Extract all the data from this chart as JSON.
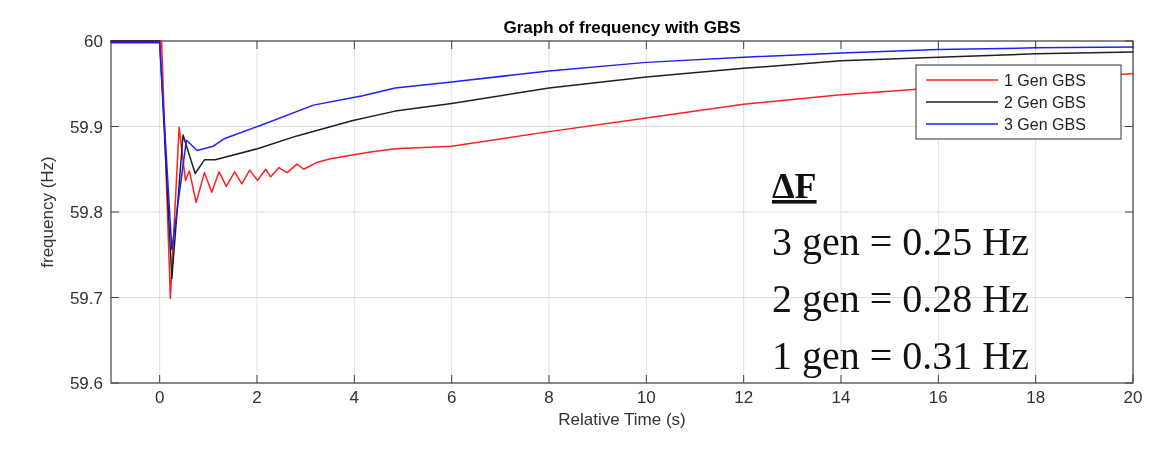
{
  "chart_data": {
    "type": "line",
    "title": "Graph of frequency with GBS",
    "xlabel": "Relative Time (s)",
    "ylabel": "frequency (Hz)",
    "xlim": [
      -1,
      20
    ],
    "xticks": [
      0,
      2,
      4,
      6,
      8,
      10,
      12,
      14,
      16,
      18,
      20
    ],
    "ylim": [
      59.6,
      60
    ],
    "yticks": [
      59.6,
      59.7,
      59.8,
      59.9,
      60
    ],
    "grid": true,
    "legend": "top right",
    "line_style": "solid",
    "marker": "none",
    "annotations": [
      "ΔF",
      "3 gen = 0.25 Hz",
      "2 gen = 0.28 Hz",
      "1 gen = 0.31 Hz"
    ],
    "series": [
      {
        "name": "1 Gen GBS",
        "color": "#ff2020",
        "x": [
          -1,
          0,
          0.04,
          0.22,
          0.4,
          0.53,
          0.61,
          0.75,
          0.92,
          1.07,
          1.22,
          1.37,
          1.54,
          1.69,
          1.85,
          2.01,
          2.18,
          2.28,
          2.45,
          2.62,
          2.82,
          2.96,
          3.23,
          3.49,
          3.9,
          4.3,
          4.84,
          6,
          8,
          10,
          12,
          14,
          20
        ],
        "values": [
          60,
          60,
          60,
          59.699,
          59.899,
          59.837,
          59.848,
          59.811,
          59.846,
          59.823,
          59.847,
          59.83,
          59.847,
          59.833,
          59.849,
          59.837,
          59.85,
          59.841,
          59.852,
          59.846,
          59.856,
          59.85,
          59.858,
          59.862,
          59.866,
          59.87,
          59.874,
          59.877,
          59.894,
          59.91,
          59.926,
          59.937,
          59.962
        ]
      },
      {
        "name": "2 Gen GBS",
        "color": "#202020",
        "x": [
          -1,
          0,
          0.25,
          0.48,
          0.73,
          0.92,
          1.14,
          2.01,
          2.82,
          3.97,
          4.84,
          6,
          8,
          10,
          12,
          14,
          16,
          18,
          20
        ],
        "values": [
          60,
          60,
          59.722,
          59.89,
          59.845,
          59.861,
          59.861,
          59.874,
          59.889,
          59.907,
          59.918,
          59.927,
          59.945,
          59.958,
          59.968,
          59.977,
          59.981,
          59.985,
          59.987
        ]
      },
      {
        "name": "3 Gen GBS",
        "color": "#2020ff",
        "x": [
          -1,
          0,
          0.25,
          0.55,
          0.77,
          1.1,
          1.34,
          2.15,
          3.16,
          4.17,
          4.84,
          6,
          8,
          10,
          12,
          14,
          16,
          18,
          20
        ],
        "values": [
          59.998,
          59.998,
          59.756,
          59.884,
          59.872,
          59.877,
          59.886,
          59.903,
          59.925,
          59.936,
          59.945,
          59.952,
          59.965,
          59.975,
          59.981,
          59.986,
          59.99,
          59.992,
          59.993
        ]
      }
    ]
  }
}
